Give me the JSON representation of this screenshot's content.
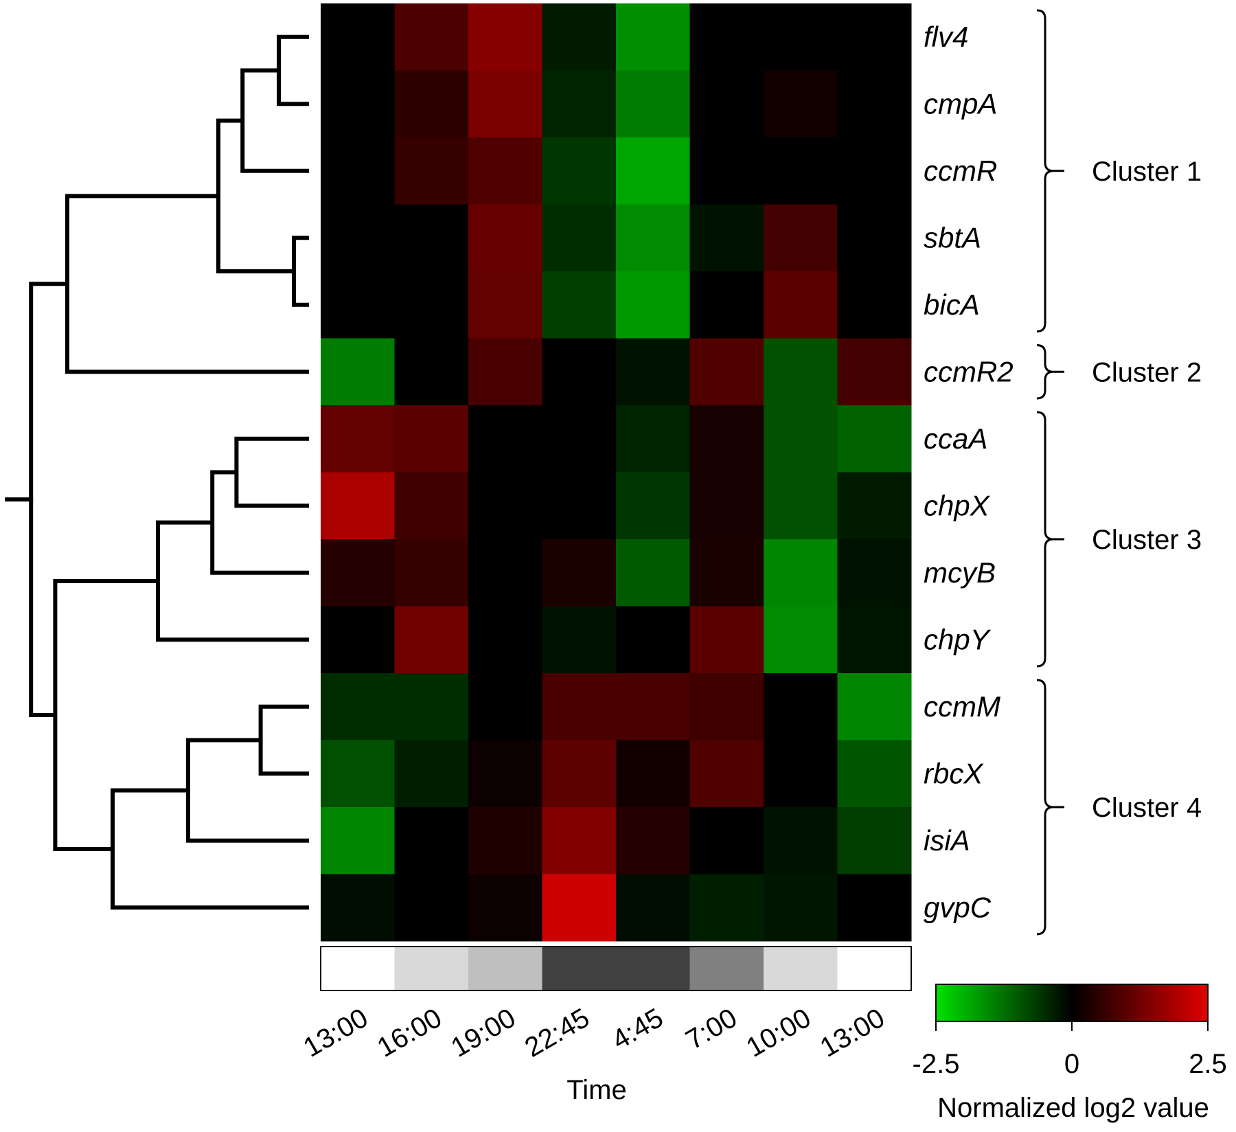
{
  "chart_data": {
    "type": "heatmap",
    "x_label": "Time",
    "x_ticks": [
      "13:00",
      "16:00",
      "19:00",
      "22:45",
      "4:45",
      "7:00",
      "10:00",
      "13:00"
    ],
    "light_levels": [
      1.0,
      0.85,
      0.75,
      0.25,
      0.25,
      0.5,
      0.85,
      1.0
    ],
    "rows": [
      "flv4",
      "cmpA",
      "ccmR",
      "sbtA",
      "bicA",
      "ccmR2",
      "ccaA",
      "chpX",
      "mcyB",
      "chpY",
      "ccmM",
      "rbcX",
      "isiA",
      "gvpC"
    ],
    "values": [
      [
        0.0,
        0.85,
        1.5,
        -0.3,
        -1.6,
        0.0,
        0.0,
        0.0
      ],
      [
        0.0,
        0.5,
        1.4,
        -0.4,
        -1.4,
        0.0,
        0.2,
        0.0
      ],
      [
        0.0,
        0.6,
        0.9,
        -0.6,
        -1.85,
        0.0,
        0.0,
        0.0
      ],
      [
        0.0,
        0.0,
        1.15,
        -0.5,
        -1.55,
        -0.2,
        0.75,
        0.0
      ],
      [
        0.0,
        0.0,
        1.1,
        -0.7,
        -1.7,
        0.0,
        1.0,
        0.0
      ],
      [
        -1.4,
        0.0,
        0.8,
        0.0,
        -0.2,
        0.9,
        -0.9,
        0.75
      ],
      [
        1.1,
        1.0,
        0.0,
        0.0,
        -0.4,
        0.25,
        -0.9,
        -1.1
      ],
      [
        1.9,
        0.7,
        0.0,
        0.0,
        -0.6,
        0.25,
        -0.9,
        -0.3
      ],
      [
        0.4,
        0.6,
        0.0,
        0.3,
        -1.0,
        0.3,
        -1.5,
        -0.2
      ],
      [
        0.0,
        1.25,
        0.0,
        -0.2,
        0.0,
        1.0,
        -1.55,
        -0.25
      ],
      [
        -0.5,
        -0.5,
        0.0,
        0.8,
        0.8,
        0.7,
        0.0,
        -1.5
      ],
      [
        -0.9,
        -0.35,
        0.15,
        1.05,
        0.2,
        0.9,
        0.0,
        -0.95
      ],
      [
        -1.5,
        0.0,
        0.35,
        1.45,
        0.4,
        0.0,
        -0.2,
        -0.7
      ],
      [
        -0.15,
        0.0,
        0.15,
        2.3,
        -0.15,
        -0.35,
        -0.25,
        0.0
      ]
    ],
    "clusters": [
      {
        "label": "Cluster 1",
        "rows": [
          0,
          4
        ]
      },
      {
        "label": "Cluster 2",
        "rows": [
          5,
          5
        ]
      },
      {
        "label": "Cluster 3",
        "rows": [
          6,
          9
        ]
      },
      {
        "label": "Cluster 4",
        "rows": [
          10,
          13
        ]
      }
    ],
    "colorbar": {
      "min": -2.5,
      "max": 2.5,
      "tick_labels": [
        "-2.5",
        "0",
        "2.5"
      ],
      "low_color": "#00e000",
      "mid_color": "#000000",
      "high_color": "#e00000",
      "title": "Normalized log2 value"
    }
  },
  "dendrogram": {
    "gene_order": [
      "flv4",
      "cmpA",
      "ccmR",
      "sbtA",
      "bicA",
      "ccmR2",
      "ccaA",
      "chpX",
      "mcyB",
      "chpY",
      "ccmM",
      "rbcX",
      "isiA",
      "gvpC"
    ],
    "merges": [
      {
        "left": "flv4",
        "right": "cmpA",
        "height": 0.9
      },
      {
        "left": "m1",
        "right": "ccmR",
        "height": 0.78
      },
      {
        "left": "sbtA",
        "right": "bicA",
        "height": 0.95
      },
      {
        "left": "m2",
        "right": "m3",
        "height": 0.7
      },
      {
        "left": "m4",
        "right": "ccmR2",
        "height": 0.2
      },
      {
        "left": "ccaA",
        "right": "chpX",
        "height": 0.76
      },
      {
        "left": "m6",
        "right": "mcyB",
        "height": 0.68
      },
      {
        "left": "m7",
        "right": "chpY",
        "height": 0.5
      },
      {
        "left": "ccmM",
        "right": "rbcX",
        "height": 0.84
      },
      {
        "left": "m9",
        "right": "isiA",
        "height": 0.6
      },
      {
        "left": "m10",
        "right": "gvpC",
        "height": 0.35
      },
      {
        "left": "m8",
        "right": "m11",
        "height": 0.16
      },
      {
        "left": "m5",
        "right": "m12",
        "height": 0.08
      },
      {
        "left": "m13",
        "right": "",
        "height": 0.0
      }
    ]
  }
}
